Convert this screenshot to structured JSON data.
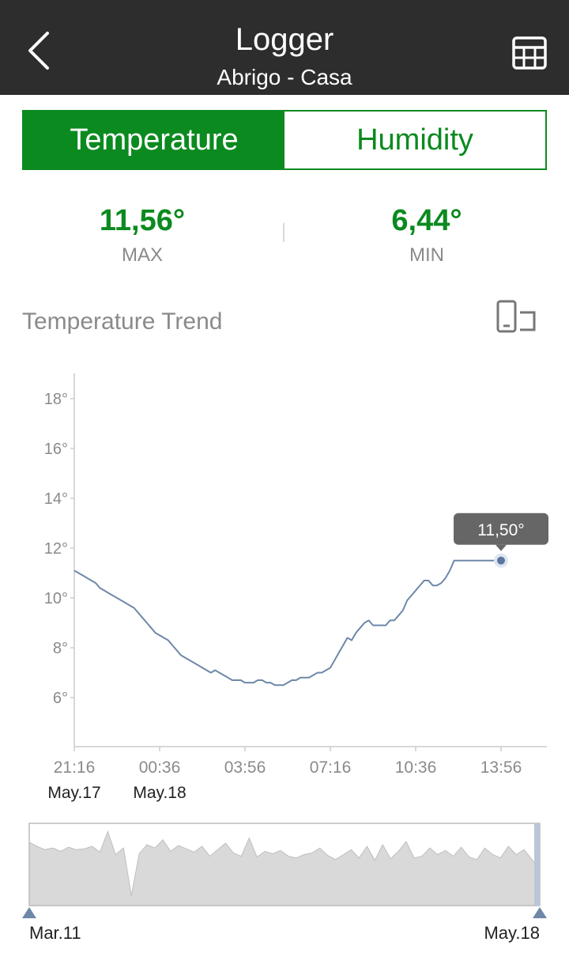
{
  "header": {
    "title": "Logger",
    "subtitle": "Abrigo - Casa",
    "back_icon": "chevron-left-icon",
    "table_icon": "table-grid-icon"
  },
  "tabs": [
    {
      "label": "Temperature",
      "active": true
    },
    {
      "label": "Humidity",
      "active": false
    }
  ],
  "stats": {
    "max": {
      "value": "11,56°",
      "label": "MAX"
    },
    "min": {
      "value": "6,44°",
      "label": "MIN"
    }
  },
  "trend": {
    "title": "Temperature Trend",
    "rotate_icon": "rotate-screen-icon"
  },
  "colors": {
    "accent": "#0b8a1f",
    "header_bg": "#2d2d2d",
    "line": "#6e88a8",
    "overview_fill": "#d9d9d9",
    "tooltip_bg": "#666666"
  },
  "chart_data": {
    "type": "line",
    "ylim": [
      5,
      19
    ],
    "y_ticks": [
      6,
      8,
      10,
      12,
      14,
      16,
      18
    ],
    "y_tick_labels": [
      "6°",
      "8°",
      "10°",
      "12°",
      "14°",
      "16°",
      "18°"
    ],
    "x_ticks": [
      {
        "label": "21:16",
        "date": "May.17",
        "t": 0
      },
      {
        "label": "00:36",
        "date": "May.18",
        "t": 200
      },
      {
        "label": "03:56",
        "date": "",
        "t": 400
      },
      {
        "label": "07:16",
        "date": "",
        "t": 600
      },
      {
        "label": "10:36",
        "date": "",
        "t": 800
      },
      {
        "label": "13:56",
        "date": "",
        "t": 1000
      }
    ],
    "xlim": [
      0,
      1110
    ],
    "series": [
      {
        "x": [
          0,
          10,
          20,
          30,
          40,
          50,
          60,
          70,
          80,
          90,
          100,
          110,
          120,
          130,
          140,
          150,
          160,
          170,
          180,
          190,
          200,
          210,
          220,
          230,
          240,
          250,
          260,
          270,
          280,
          290,
          300,
          310,
          320,
          330,
          340,
          350,
          360,
          370,
          380,
          390,
          400,
          410,
          420,
          430,
          440,
          450,
          460,
          470,
          480,
          490,
          500,
          510,
          520,
          530,
          540,
          550,
          560,
          570,
          580,
          590,
          600,
          610,
          620,
          630,
          640,
          650,
          660,
          670,
          680,
          690,
          700,
          710,
          720,
          730,
          740,
          750,
          760,
          770,
          780,
          790,
          800,
          810,
          820,
          830,
          840,
          850,
          860,
          870,
          880,
          890,
          900,
          910,
          920,
          930,
          940,
          950,
          960,
          970,
          980,
          990,
          1000
        ],
        "y": [
          11.1,
          11.0,
          10.9,
          10.8,
          10.7,
          10.6,
          10.4,
          10.3,
          10.2,
          10.1,
          10.0,
          9.9,
          9.8,
          9.7,
          9.6,
          9.4,
          9.2,
          9.0,
          8.8,
          8.6,
          8.5,
          8.4,
          8.3,
          8.1,
          7.9,
          7.7,
          7.6,
          7.5,
          7.4,
          7.3,
          7.2,
          7.1,
          7.0,
          7.1,
          7.0,
          6.9,
          6.8,
          6.7,
          6.7,
          6.7,
          6.6,
          6.6,
          6.6,
          6.7,
          6.7,
          6.6,
          6.6,
          6.5,
          6.5,
          6.5,
          6.6,
          6.7,
          6.7,
          6.8,
          6.8,
          6.8,
          6.9,
          7.0,
          7.0,
          7.1,
          7.2,
          7.5,
          7.8,
          8.1,
          8.4,
          8.3,
          8.6,
          8.8,
          9.0,
          9.1,
          8.9,
          8.9,
          8.9,
          8.9,
          9.1,
          9.1,
          9.3,
          9.5,
          9.9,
          10.1,
          10.3,
          10.5,
          10.7,
          10.7,
          10.5,
          10.5,
          10.6,
          10.8,
          11.1,
          11.5,
          11.5,
          11.5,
          11.5,
          11.5,
          11.5,
          11.5,
          11.5,
          11.5,
          11.5,
          11.5,
          11.5
        ]
      }
    ],
    "highlight": {
      "x": 1000,
      "y": 11.5,
      "label": "11,50°"
    }
  },
  "overview": {
    "start_label": "Mar.11",
    "end_label": "May.18",
    "samples": [
      0.77,
      0.72,
      0.68,
      0.7,
      0.66,
      0.71,
      0.68,
      0.69,
      0.72,
      0.65,
      0.9,
      0.62,
      0.7,
      0.12,
      0.63,
      0.74,
      0.7,
      0.8,
      0.66,
      0.73,
      0.69,
      0.65,
      0.72,
      0.6,
      0.68,
      0.76,
      0.64,
      0.6,
      0.82,
      0.59,
      0.66,
      0.63,
      0.67,
      0.6,
      0.58,
      0.62,
      0.64,
      0.7,
      0.61,
      0.56,
      0.62,
      0.68,
      0.58,
      0.72,
      0.55,
      0.74,
      0.57,
      0.66,
      0.78,
      0.58,
      0.6,
      0.7,
      0.62,
      0.67,
      0.6,
      0.71,
      0.59,
      0.56,
      0.7,
      0.62,
      0.58,
      0.72,
      0.62,
      0.68,
      0.56,
      0.45
    ],
    "range_start": 0,
    "range_end": 1
  }
}
